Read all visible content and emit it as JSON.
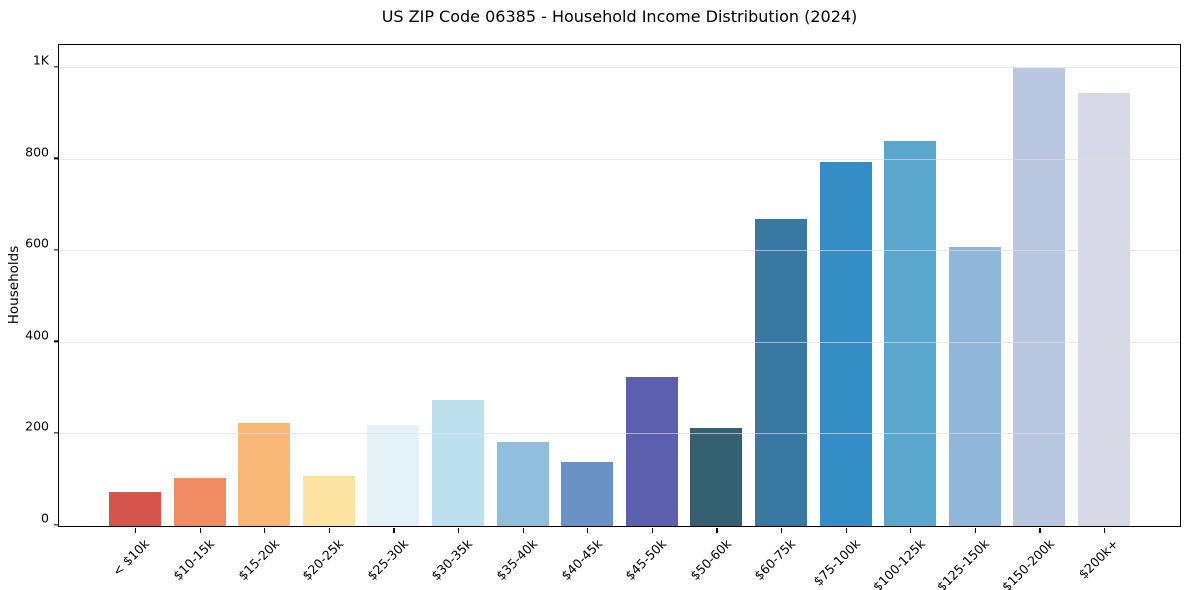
{
  "title": "US ZIP Code 06385 - Household Income Distribution (2024)",
  "chart_data": {
    "type": "bar",
    "title": "US ZIP Code 06385 - Household Income Distribution (2024)",
    "xlabel": "",
    "ylabel": "Households",
    "ylim": [
      0,
      1050
    ],
    "grid": "horizontal-only",
    "legend": "none",
    "categories": [
      "< $10k",
      "$10-15k",
      "$15-20k",
      "$20-25k",
      "$25-30k",
      "$30-35k",
      "$35-40k",
      "$40-45k",
      "$45-50k",
      "$50-60k",
      "$60-75k",
      "$75-100k",
      "$100-125k",
      "$125-150k",
      "$150-200k",
      "$200k+"
    ],
    "values": [
      75,
      105,
      225,
      110,
      220,
      275,
      183,
      140,
      325,
      215,
      670,
      795,
      840,
      610,
      1000,
      945
    ],
    "bar_colors": [
      "#d6564d",
      "#f18b63",
      "#fab878",
      "#fde3a1",
      "#e4f2f8",
      "#bce0ee",
      "#92bedd",
      "#6b92c5",
      "#5c5fae",
      "#34606f",
      "#3878a3",
      "#348dc4",
      "#5ba6cd",
      "#90b7d9",
      "#b9c7e1",
      "#d7d9e7"
    ],
    "yticks": [
      {
        "value": 0,
        "label": "0"
      },
      {
        "value": 200,
        "label": "200"
      },
      {
        "value": 400,
        "label": "400"
      },
      {
        "value": 600,
        "label": "600"
      },
      {
        "value": 800,
        "label": "800"
      },
      {
        "value": 1000,
        "label": "1K"
      }
    ]
  },
  "colors": {
    "background": "#ffffff",
    "spine": "#000000",
    "gridline": "#e5e5e5",
    "text": "#000000"
  }
}
